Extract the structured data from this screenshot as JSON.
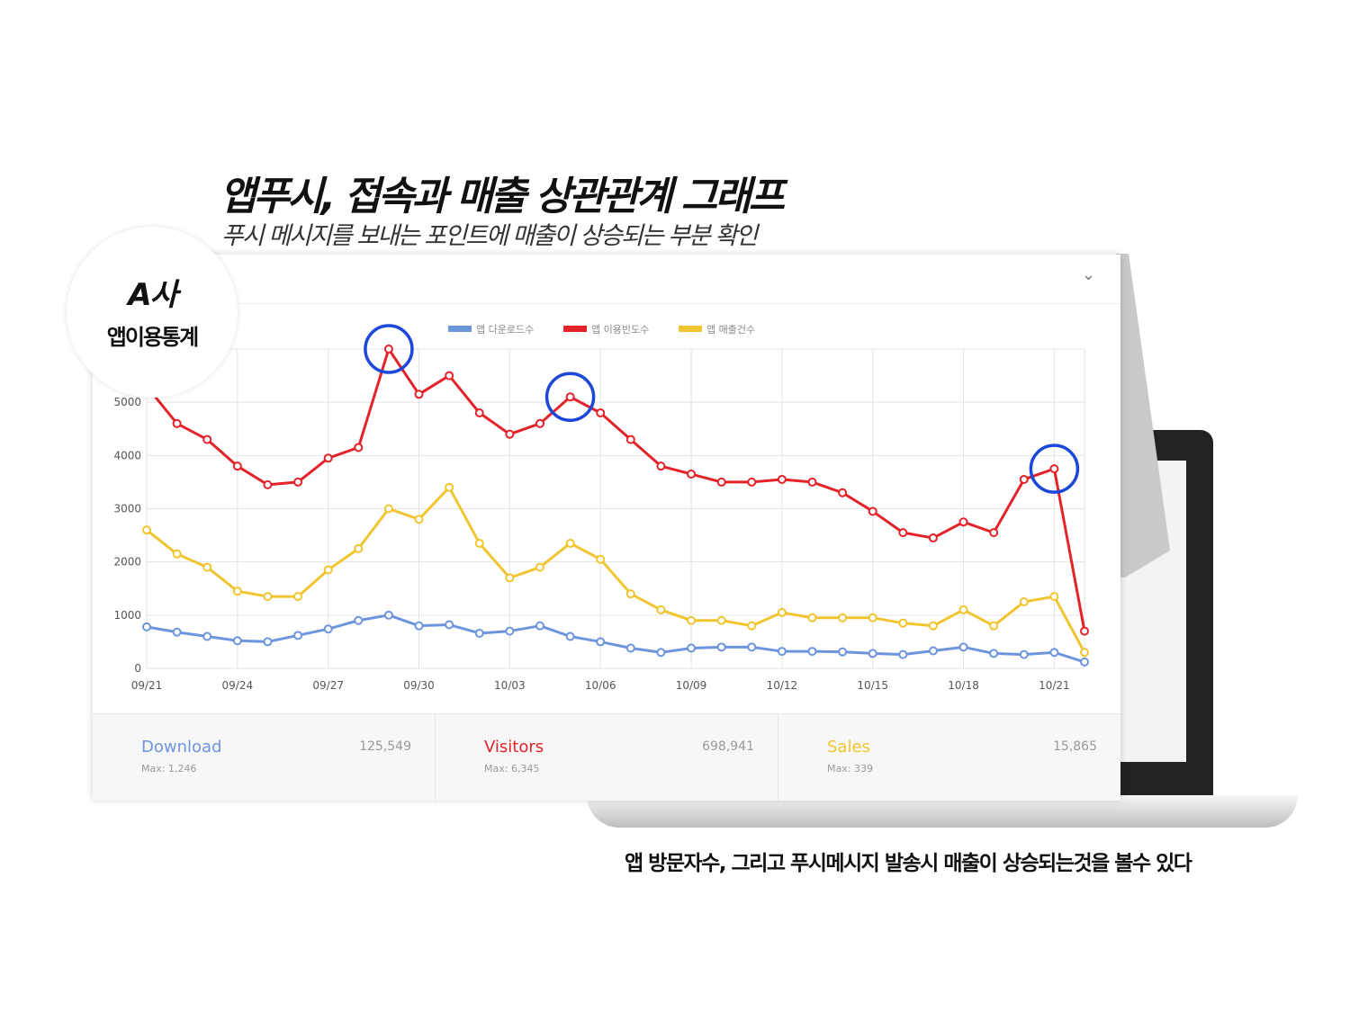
{
  "title": "앱푸시, 접속과 매출 상관관계 그래프",
  "subtitle": "푸시 메시지를 보내는 포인트에 매출이 상승되는 부분 확인",
  "badge": {
    "company": "A사",
    "label": "앱이용통계"
  },
  "caption": "앱 방문자수, 그리고 푸시메시지 발송시 매출이 상승되는것을 볼수 있다",
  "colors": {
    "download": "#6d95dd",
    "visitors": "#e3222a",
    "sales": "#f0c530",
    "highlight": "#1c47d8"
  },
  "chart_data": {
    "type": "line",
    "x_labels": [
      "09/21",
      "09/24",
      "09/27",
      "09/30",
      "10/03",
      "10/06",
      "10/09",
      "10/12",
      "10/15",
      "10/18",
      "10/21"
    ],
    "ylim": [
      0,
      6000
    ],
    "y_ticks": [
      0,
      1000,
      2000,
      3000,
      4000,
      5000
    ],
    "grid": true,
    "legend_position": "top",
    "series": [
      {
        "name": "앱 다운로드수",
        "key": "download",
        "values": [
          780,
          680,
          600,
          520,
          500,
          620,
          740,
          900,
          1000,
          800,
          820,
          660,
          700,
          800,
          600,
          500,
          380,
          300,
          380,
          400,
          400,
          320,
          320,
          310,
          280,
          260,
          330,
          400,
          280,
          260,
          300,
          120
        ]
      },
      {
        "name": "앱 이용빈도수",
        "key": "visitors",
        "values": [
          5300,
          4600,
          4300,
          3800,
          3450,
          3500,
          3950,
          4150,
          6000,
          5150,
          5500,
          4800,
          4400,
          4600,
          5100,
          4800,
          4300,
          3800,
          3650,
          3500,
          3500,
          3550,
          3500,
          3300,
          2950,
          2550,
          2450,
          2750,
          2550,
          3550,
          3750,
          700
        ]
      },
      {
        "name": "앱 매출건수",
        "key": "sales",
        "values": [
          2600,
          2150,
          1900,
          1450,
          1350,
          1350,
          1850,
          2250,
          3000,
          2800,
          3400,
          2350,
          1700,
          1900,
          2350,
          2050,
          1400,
          1100,
          900,
          900,
          800,
          1050,
          950,
          950,
          950,
          850,
          800,
          1100,
          800,
          1250,
          1350,
          300
        ]
      }
    ],
    "highlights": [
      8,
      14,
      30
    ]
  },
  "stats": [
    {
      "key": "download",
      "name": "Download",
      "max": "Max: 1,246",
      "total": "125,549"
    },
    {
      "key": "visitors",
      "name": "Visitors",
      "max": "Max: 6,345",
      "total": "698,941"
    },
    {
      "key": "sales",
      "name": "Sales",
      "max": "Max: 339",
      "total": "15,865"
    }
  ]
}
